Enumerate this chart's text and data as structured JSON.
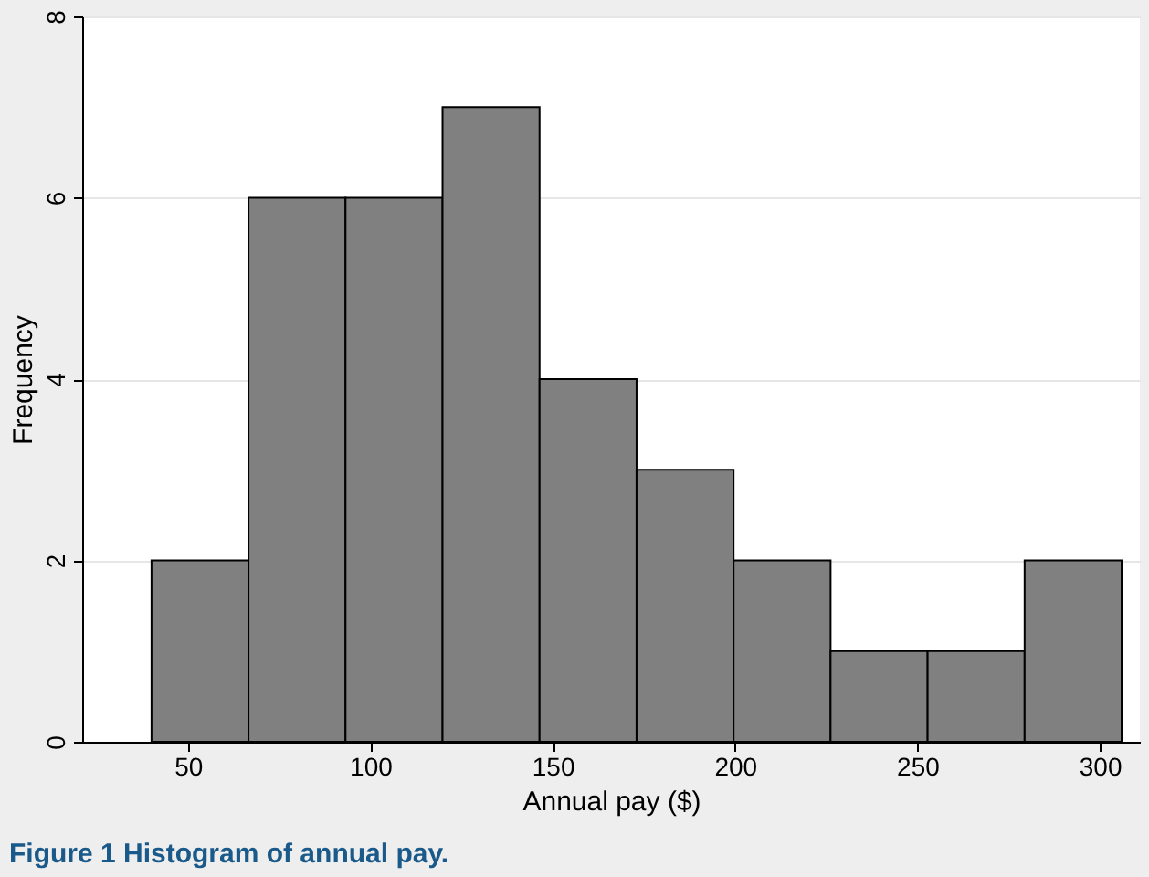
{
  "chart_data": {
    "type": "histogram",
    "xlabel": "Annual pay ($)",
    "ylabel": "Frequency",
    "bins": [
      40,
      66.6,
      93.2,
      119.8,
      146.4,
      173,
      199.6,
      226.2,
      252.8,
      279.4,
      306
    ],
    "values": [
      2,
      6,
      6,
      7,
      4,
      3,
      2,
      1,
      1,
      2
    ],
    "color": "#808080",
    "xlim": [
      21,
      311
    ],
    "xticks": [
      50,
      100,
      150,
      200,
      250,
      300
    ],
    "ylim": [
      0,
      8
    ],
    "yticks": [
      0,
      2,
      4,
      6,
      8
    ],
    "grid": "y",
    "annotations": [
      "Figure 1 Histogram of annual pay."
    ]
  }
}
